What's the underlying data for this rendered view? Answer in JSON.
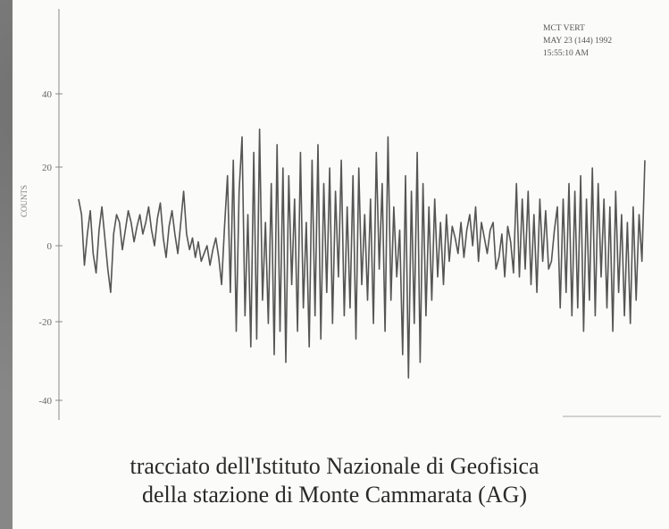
{
  "chart_data": {
    "type": "line",
    "header": [
      "MCT VERT",
      "MAY 23 (144) 1992",
      "15:55:10 AM"
    ],
    "ylabel": "COUNTS",
    "yticks": [
      "40",
      "20",
      "0",
      "-20",
      "-40"
    ],
    "ylim": [
      -40,
      50
    ],
    "xlim": [
      0,
      600
    ],
    "grid": false,
    "series": [
      {
        "values": [
          12,
          8,
          -5,
          3,
          9,
          -2,
          -7,
          4,
          10,
          2,
          -6,
          -12,
          3,
          8,
          6,
          -1,
          4,
          9,
          6,
          1,
          5,
          8,
          3,
          6,
          10,
          4,
          0,
          7,
          11,
          2,
          -3,
          5,
          9,
          3,
          -2,
          6,
          14,
          3,
          -1,
          2,
          -3,
          1,
          -4,
          -2,
          0,
          -5,
          -1,
          2,
          -3,
          -10,
          5,
          18,
          -12,
          22,
          -22,
          14,
          28,
          -18,
          8,
          -26,
          24,
          -24,
          30,
          -14,
          6,
          -20,
          16,
          -28,
          26,
          -22,
          20,
          -30,
          18,
          -10,
          12,
          -22,
          24,
          -16,
          6,
          -26,
          22,
          -18,
          26,
          -24,
          16,
          -12,
          20,
          -20,
          14,
          -8,
          22,
          -18,
          10,
          -16,
          18,
          -24,
          20,
          -10,
          8,
          -14,
          12,
          -20,
          24,
          -6,
          16,
          -22,
          28,
          -14,
          10,
          -8,
          4,
          -28,
          18,
          -34,
          14,
          -20,
          24,
          -30,
          16,
          -18,
          10,
          -14,
          12,
          -8,
          6,
          -10,
          8,
          -4,
          5,
          2,
          -2,
          6,
          -3,
          4,
          8,
          0,
          10,
          -4,
          6,
          2,
          -2,
          4,
          6,
          -6,
          -3,
          3,
          -8,
          5,
          1,
          -7,
          16,
          -8,
          12,
          -6,
          14,
          -10,
          8,
          -12,
          12,
          -4,
          9,
          -6,
          -4,
          4,
          10,
          -16,
          12,
          -12,
          16,
          -18,
          14,
          -16,
          18,
          -22,
          12,
          -14,
          20,
          -18,
          16,
          -8,
          12,
          -16,
          10,
          -22,
          14,
          -12,
          8,
          -18,
          6,
          -20,
          10,
          -14,
          8,
          -4,
          22
        ]
      }
    ]
  },
  "caption": {
    "line1": "tracciato dell'Istituto Nazionale di Geofisica",
    "line2": "della stazione di Monte Cammarata (AG)"
  }
}
